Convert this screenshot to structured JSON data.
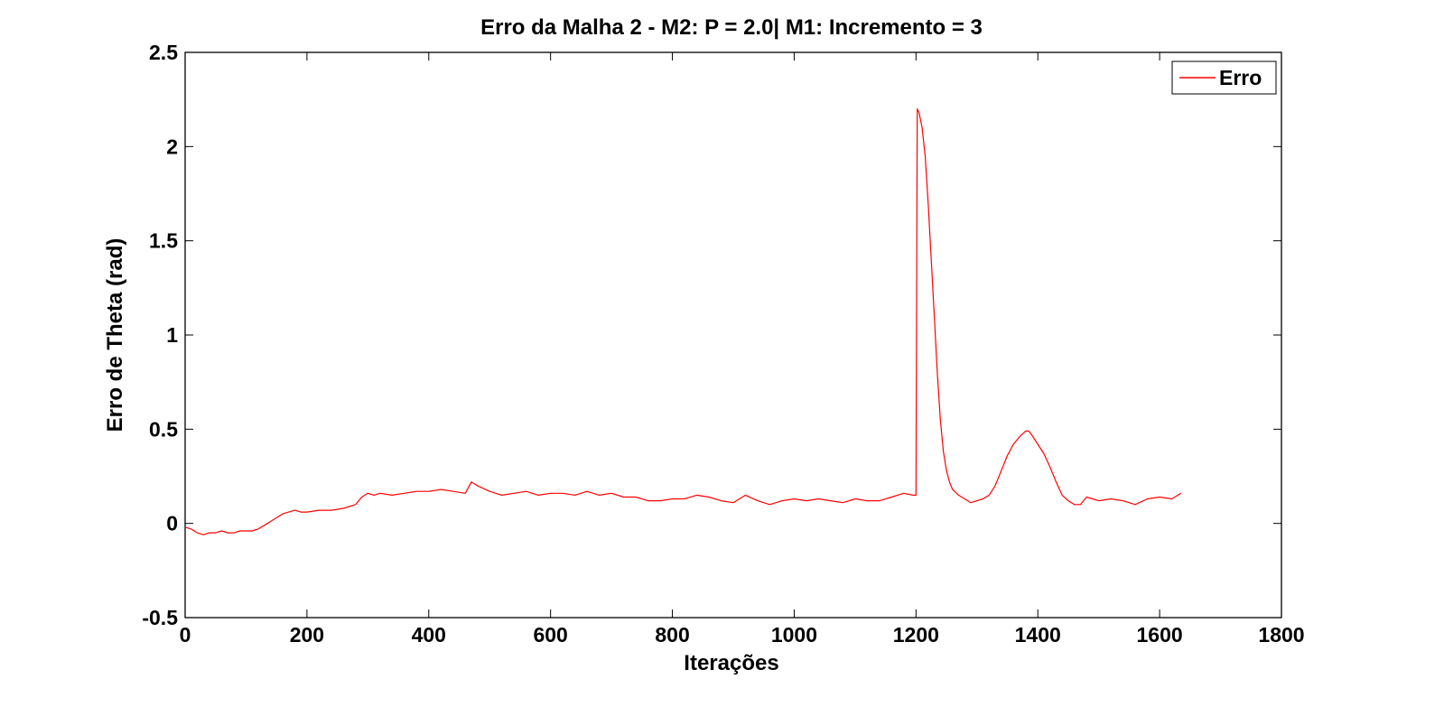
{
  "chart_data": {
    "type": "line",
    "title": "Erro da Malha 2 - M2: P = 2.0| M1: Incremento = 3",
    "xlabel": "Iterações",
    "ylabel": "Erro de Theta (rad)",
    "xlim": [
      0,
      1800
    ],
    "ylim": [
      -0.5,
      2.5
    ],
    "xticks": [
      "0",
      "200",
      "400",
      "600",
      "800",
      "1000",
      "1200",
      "1400",
      "1600",
      "1800"
    ],
    "yticks": [
      "-0.5",
      "0",
      "0.5",
      "1",
      "1.5",
      "2",
      "2.5"
    ],
    "grid": false,
    "legend_position": "top-right",
    "series": [
      {
        "name": "Erro",
        "color": "#ff0000",
        "x": [
          0,
          10,
          20,
          30,
          40,
          50,
          60,
          70,
          80,
          90,
          100,
          110,
          120,
          130,
          140,
          150,
          160,
          170,
          180,
          190,
          200,
          220,
          240,
          260,
          280,
          290,
          300,
          310,
          320,
          340,
          360,
          380,
          400,
          420,
          440,
          460,
          470,
          480,
          500,
          520,
          540,
          560,
          580,
          600,
          620,
          640,
          660,
          680,
          700,
          720,
          740,
          760,
          780,
          800,
          820,
          840,
          860,
          880,
          900,
          920,
          940,
          960,
          980,
          1000,
          1020,
          1040,
          1060,
          1080,
          1100,
          1120,
          1140,
          1160,
          1180,
          1195,
          1200,
          1202,
          1205,
          1210,
          1215,
          1220,
          1225,
          1230,
          1235,
          1240,
          1245,
          1250,
          1255,
          1260,
          1270,
          1280,
          1290,
          1300,
          1310,
          1320,
          1330,
          1340,
          1350,
          1360,
          1370,
          1380,
          1385,
          1390,
          1400,
          1410,
          1420,
          1430,
          1440,
          1450,
          1460,
          1470,
          1480,
          1490,
          1500,
          1520,
          1540,
          1560,
          1580,
          1600,
          1620,
          1635
        ],
        "y": [
          -0.02,
          -0.03,
          -0.05,
          -0.06,
          -0.05,
          -0.05,
          -0.04,
          -0.05,
          -0.05,
          -0.04,
          -0.04,
          -0.04,
          -0.03,
          -0.01,
          0.01,
          0.03,
          0.05,
          0.06,
          0.07,
          0.06,
          0.06,
          0.07,
          0.07,
          0.08,
          0.1,
          0.14,
          0.16,
          0.15,
          0.16,
          0.15,
          0.16,
          0.17,
          0.17,
          0.18,
          0.17,
          0.16,
          0.22,
          0.2,
          0.17,
          0.15,
          0.16,
          0.17,
          0.15,
          0.16,
          0.16,
          0.15,
          0.17,
          0.15,
          0.16,
          0.14,
          0.14,
          0.12,
          0.12,
          0.13,
          0.13,
          0.15,
          0.14,
          0.12,
          0.11,
          0.15,
          0.12,
          0.1,
          0.12,
          0.13,
          0.12,
          0.13,
          0.12,
          0.11,
          0.13,
          0.12,
          0.12,
          0.14,
          0.16,
          0.15,
          0.15,
          2.2,
          2.18,
          2.1,
          1.95,
          1.7,
          1.4,
          1.1,
          0.8,
          0.55,
          0.38,
          0.28,
          0.22,
          0.18,
          0.15,
          0.13,
          0.11,
          0.12,
          0.13,
          0.15,
          0.2,
          0.28,
          0.36,
          0.42,
          0.46,
          0.49,
          0.49,
          0.47,
          0.42,
          0.37,
          0.3,
          0.22,
          0.15,
          0.12,
          0.1,
          0.1,
          0.14,
          0.13,
          0.12,
          0.13,
          0.12,
          0.1,
          0.13,
          0.14,
          0.13,
          0.16
        ]
      }
    ]
  }
}
